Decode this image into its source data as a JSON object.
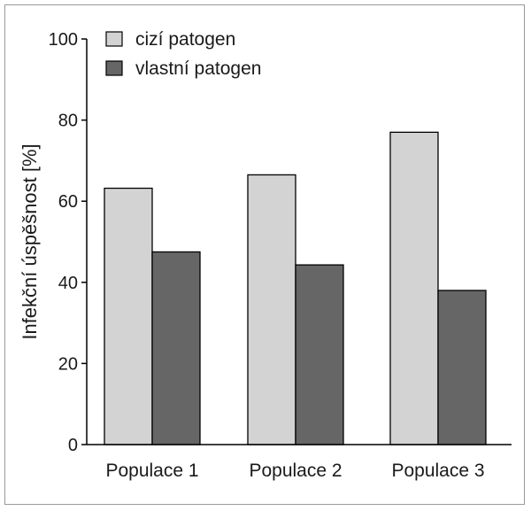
{
  "chart_data": {
    "type": "bar",
    "ylabel": "Infekční úspěšnost [%]",
    "categories": [
      "Populace 1",
      "Populace 2",
      "Populace 3"
    ],
    "series": [
      {
        "name": "cizí patogen",
        "values": [
          63.2,
          66.5,
          77.0
        ],
        "color": "#d3d3d3"
      },
      {
        "name": "vlastní patogen",
        "values": [
          47.5,
          44.3,
          38.0
        ],
        "color": "#666666"
      }
    ],
    "ylim": [
      0,
      100
    ],
    "yticks": [
      0,
      20,
      40,
      60,
      80,
      100
    ],
    "grid": false,
    "legend": "top-left"
  }
}
